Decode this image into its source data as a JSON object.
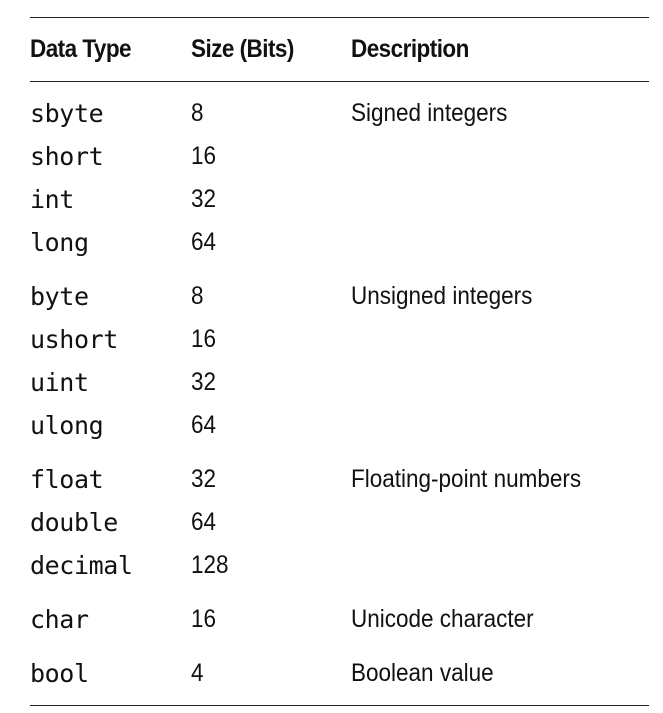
{
  "table": {
    "headers": {
      "type": "Data Type",
      "size": "Size (Bits)",
      "description": "Description"
    },
    "groups": [
      {
        "description": "Signed integers",
        "rows": [
          {
            "type": "sbyte",
            "size": "8"
          },
          {
            "type": "short",
            "size": "16"
          },
          {
            "type": "int",
            "size": "32"
          },
          {
            "type": "long",
            "size": "64"
          }
        ]
      },
      {
        "description": "Unsigned integers",
        "rows": [
          {
            "type": "byte",
            "size": "8"
          },
          {
            "type": "ushort",
            "size": "16"
          },
          {
            "type": "uint",
            "size": "32"
          },
          {
            "type": "ulong",
            "size": "64"
          }
        ]
      },
      {
        "description": "Floating-point numbers",
        "rows": [
          {
            "type": "float",
            "size": "32"
          },
          {
            "type": "double",
            "size": "64"
          },
          {
            "type": "decimal",
            "size": "128"
          }
        ]
      },
      {
        "description": "Unicode character",
        "rows": [
          {
            "type": "char",
            "size": "16"
          }
        ]
      },
      {
        "description": "Boolean value",
        "rows": [
          {
            "type": "bool",
            "size": "4"
          }
        ]
      }
    ]
  }
}
